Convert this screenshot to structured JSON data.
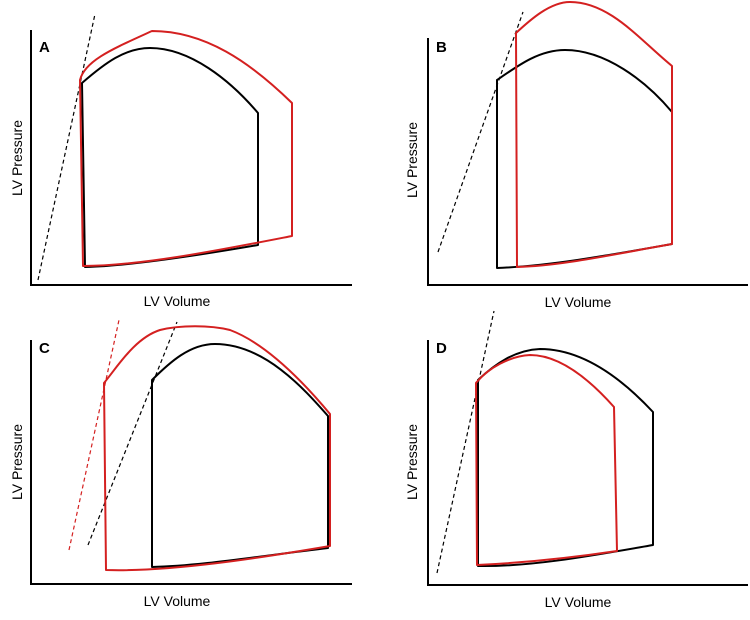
{
  "colors": {
    "baseline": "#000000",
    "altered": "#d42020",
    "axes": "#000000"
  },
  "panels": [
    {
      "id": "A",
      "label": "A",
      "xlabel": "LV Volume",
      "ylabel": "LV Pressure"
    },
    {
      "id": "B",
      "label": "B",
      "xlabel": "LV Volume",
      "ylabel": "LV Pressure"
    },
    {
      "id": "C",
      "label": "C",
      "xlabel": "LV Volume",
      "ylabel": "LV Pressure"
    },
    {
      "id": "D",
      "label": "D",
      "xlabel": "LV Volume",
      "ylabel": "LV Pressure"
    }
  ]
}
